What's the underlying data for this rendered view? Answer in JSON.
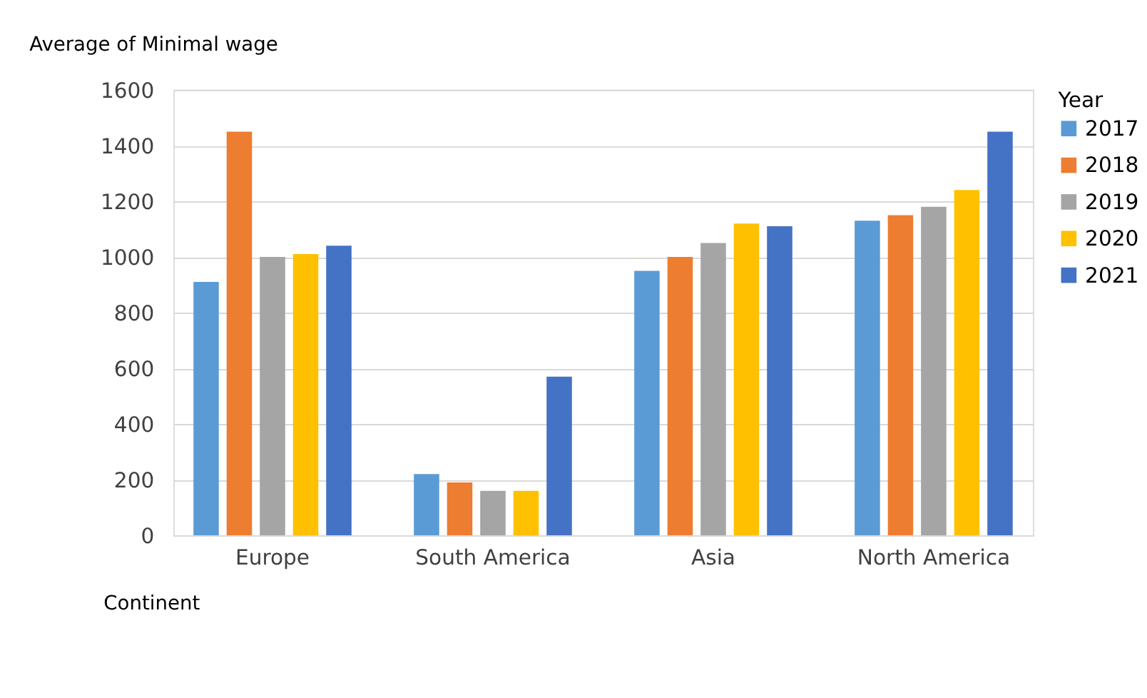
{
  "chart_data": {
    "type": "bar",
    "title": "Average of Minimal wage",
    "xlabel": "Continent",
    "legend_title": "Year",
    "categories": [
      "Europe",
      "South America",
      "Asia",
      "North America"
    ],
    "series": [
      {
        "name": "2017",
        "color": "#5b9bd5",
        "values": [
          910,
          220,
          950,
          1130
        ]
      },
      {
        "name": "2018",
        "color": "#ed7d31",
        "values": [
          1450,
          190,
          1000,
          1150
        ]
      },
      {
        "name": "2019",
        "color": "#a5a5a5",
        "values": [
          1000,
          160,
          1050,
          1180
        ]
      },
      {
        "name": "2020",
        "color": "#ffc000",
        "values": [
          1010,
          160,
          1120,
          1240
        ]
      },
      {
        "name": "2021",
        "color": "#4472c4",
        "values": [
          1040,
          570,
          1110,
          1450
        ]
      }
    ],
    "ylim": [
      0,
      1600
    ],
    "yticks": [
      0,
      200,
      400,
      600,
      800,
      1000,
      1200,
      1400,
      1600
    ],
    "grid": "y",
    "legend": "right"
  }
}
